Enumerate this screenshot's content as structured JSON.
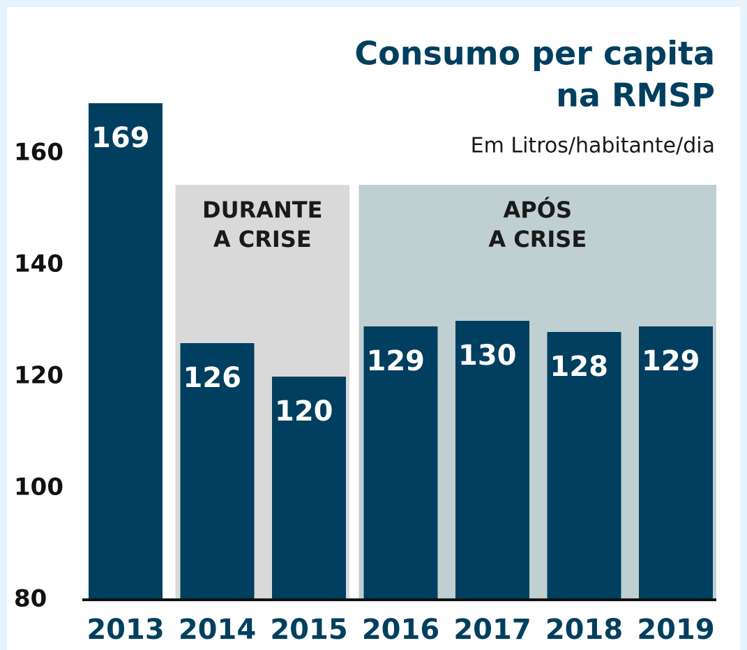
{
  "chart_data": {
    "type": "bar",
    "title": [
      "Consumo per capita",
      "na RMSP"
    ],
    "subtitle": "Em Litros/habitante/dia",
    "categories": [
      "2013",
      "2014",
      "2015",
      "2016",
      "2017",
      "2018",
      "2019"
    ],
    "values": [
      169,
      126,
      120,
      129,
      130,
      128,
      129
    ],
    "color": "#003f5f",
    "ylim": [
      80,
      180
    ],
    "yticks": [
      80,
      100,
      120,
      140,
      160
    ],
    "periods": [
      {
        "label": [
          "DURANTE",
          "A CRISE"
        ],
        "from": "2014",
        "to": "2015",
        "color": "#d9d9d9"
      },
      {
        "label": [
          "APÓS",
          "A CRISE"
        ],
        "from": "2016",
        "to": "2019",
        "color": "#bfcfd2"
      }
    ]
  }
}
